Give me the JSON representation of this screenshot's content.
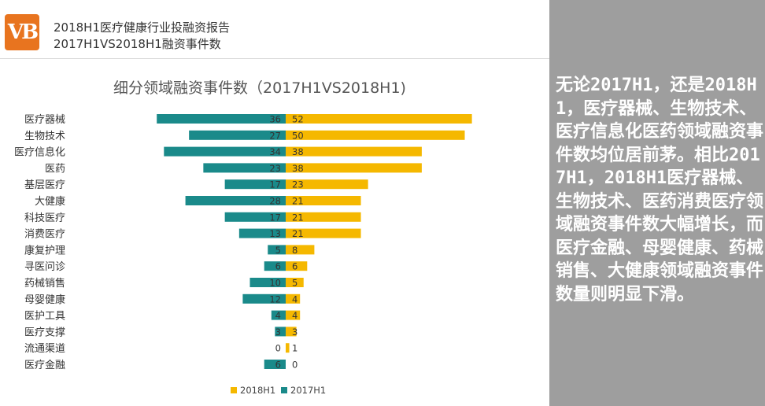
{
  "header": {
    "logo_text": "VB",
    "title_line1": "2018H1医疗健康行业投融资报告",
    "title_line2": "2017H1VS2018H1融资事件数"
  },
  "sidebar": {
    "text": "无论2017H1，还是2018H1，医疗器械、生物技术、医疗信息化医药领域融资事件数均位居前茅。相比2017H1，2018H1医疗器械、生物技术、医药消费医疗领域融资事件数大幅增长，而医疗金融、母婴健康、药械销售、大健康领域融资事件数量则明显下滑。"
  },
  "chart_data": {
    "type": "bar",
    "orientation": "horizontal-butterfly",
    "title": "细分领域融资事件数（2017H1VS2018H1)",
    "categories": [
      "医疗器械",
      "生物技术",
      "医疗信息化",
      "医药",
      "基层医疗",
      "大健康",
      "科技医疗",
      "消费医疗",
      "康复护理",
      "寻医问诊",
      "药械销售",
      "母婴健康",
      "医护工具",
      "医疗支撑",
      "流通渠道",
      "医疗金融"
    ],
    "series": [
      {
        "name": "2017H1",
        "color": "#1a8a8a",
        "side": "left",
        "values": [
          36,
          27,
          34,
          23,
          17,
          28,
          17,
          13,
          5,
          6,
          10,
          12,
          4,
          3,
          0,
          6
        ]
      },
      {
        "name": "2018H1",
        "color": "#f5b800",
        "side": "right",
        "values": [
          52,
          50,
          38,
          38,
          23,
          21,
          21,
          21,
          8,
          6,
          5,
          4,
          4,
          3,
          1,
          0
        ]
      }
    ],
    "legend": {
      "placement": "bottom-center",
      "order": [
        "2018H1",
        "2017H1"
      ]
    },
    "grid": false
  }
}
